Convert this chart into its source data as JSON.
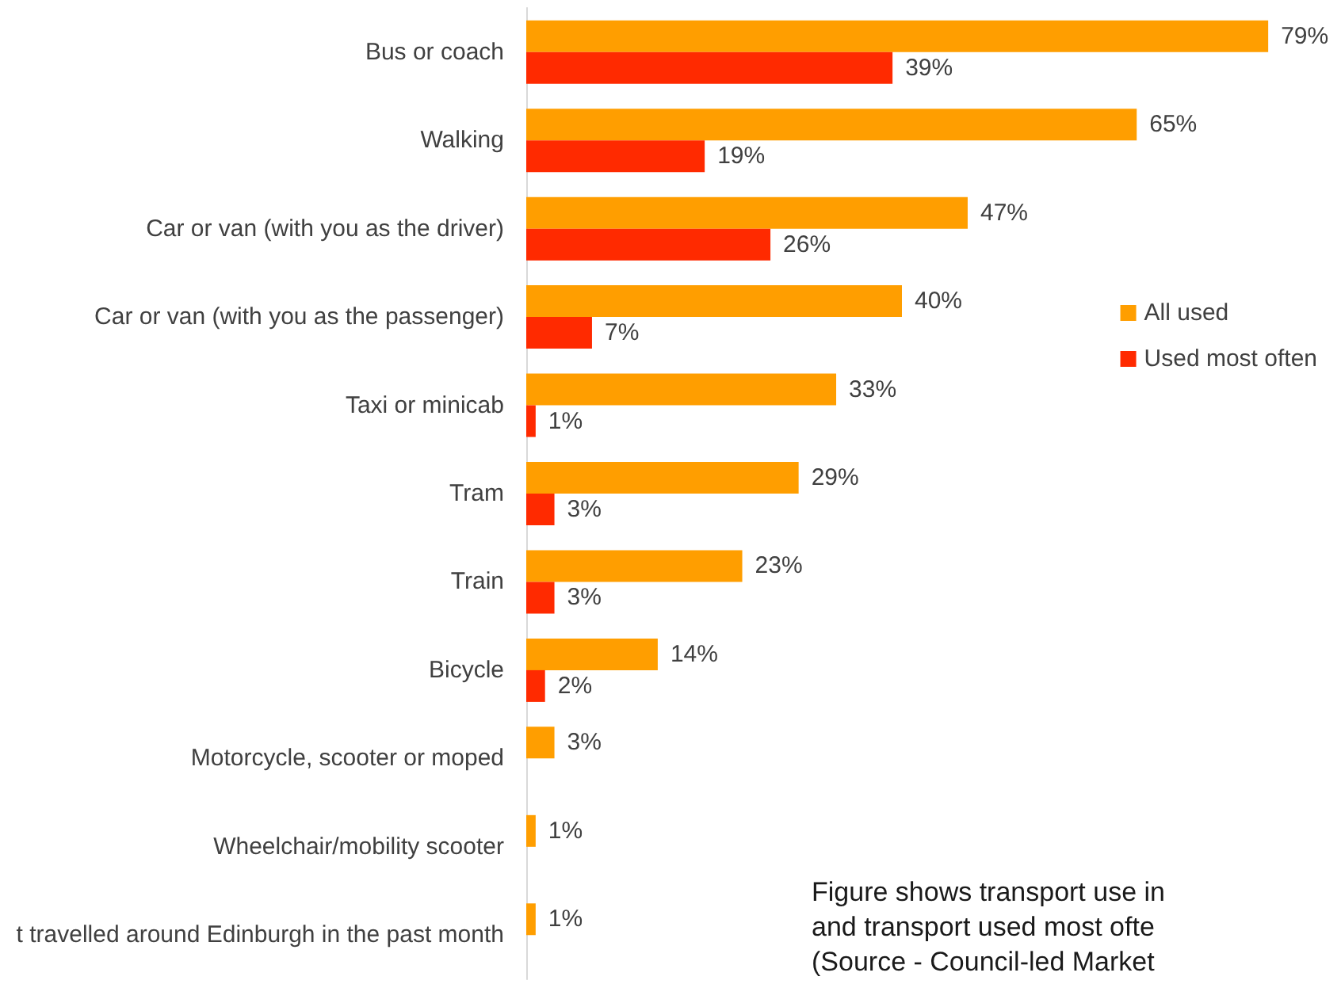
{
  "chart_data": {
    "type": "bar",
    "orientation": "horizontal",
    "categories": [
      "Bus or coach",
      "Walking",
      "Car or van (with you as the driver)",
      "Car or van (with you as the passenger)",
      "Taxi or minicab",
      "Tram",
      "Train",
      "Bicycle",
      "Motorcycle, scooter or moped",
      "Wheelchair/mobility scooter",
      "t travelled around Edinburgh in the past month"
    ],
    "series": [
      {
        "name": "All used",
        "color": "#ff9e00",
        "values": [
          79,
          65,
          47,
          40,
          33,
          29,
          23,
          14,
          3,
          1,
          1
        ],
        "value_labels": [
          "79%",
          "65%",
          "47%",
          "40%",
          "33%",
          "29%",
          "23%",
          "14%",
          "3%",
          "1%",
          "1%"
        ]
      },
      {
        "name": "Used most often",
        "color": "#ff2a00",
        "values": [
          39,
          19,
          26,
          7,
          1,
          3,
          3,
          2,
          null,
          null,
          null
        ],
        "value_labels": [
          "39%",
          "19%",
          "26%",
          "7%",
          "1%",
          "3%",
          "3%",
          "2%",
          null,
          null,
          null
        ]
      }
    ],
    "legend": "right",
    "annotations": [
      "Figure shows transport use in",
      "and transport used most ofte",
      "(Source - Council-led Market"
    ]
  }
}
